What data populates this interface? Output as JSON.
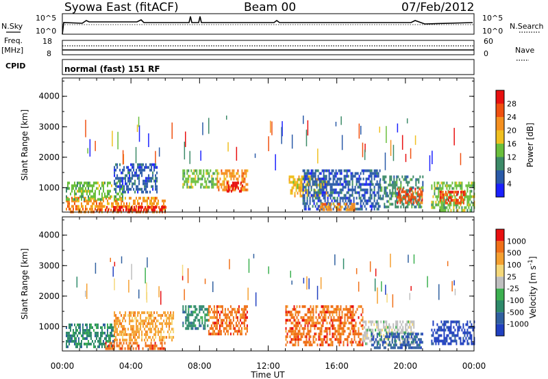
{
  "header": {
    "station": "Syowa East (fitACF)",
    "beam": "Beam 00",
    "date": "07/Feb/2012"
  },
  "top_panels": {
    "nsky_label": "N.Sky",
    "nsearch_label": "N.Search",
    "nsky_ticks": [
      "10^5",
      "10^0"
    ],
    "nsearch_ticks": [
      "10^5",
      "10^0"
    ],
    "freq_label": "Freq.",
    "freq_unit": "[MHz]",
    "freq_ticks": [
      "18",
      "8"
    ],
    "nave_label": "Nave",
    "nave_ticks": [
      "60",
      "0"
    ],
    "cpid_label": "CPID",
    "cpid_value": "normal (fast) 151 RF"
  },
  "chart_data": [
    {
      "type": "heatmap",
      "name": "power-panel",
      "ylabel": "Slant Range [km]",
      "ylim": [
        200,
        4600
      ],
      "yticks": [
        "1000",
        "2000",
        "3000",
        "4000"
      ],
      "colorbar_label": "Power [dB]",
      "colorbar_ticks": [
        "4",
        "8",
        "12",
        "16",
        "20",
        "24",
        "28"
      ],
      "colors": [
        "#1a20ff",
        "#2a5aa8",
        "#3c8a68",
        "#6abf3c",
        "#f0c020",
        "#f59020",
        "#f05010",
        "#e81010"
      ],
      "regions": [
        {
          "t0": 0.2,
          "t1": 6.0,
          "r0": 250,
          "r1": 700,
          "c": 5
        },
        {
          "t0": 2.0,
          "t1": 6.0,
          "r0": 250,
          "r1": 400,
          "c": 7
        },
        {
          "t0": 0.2,
          "t1": 3.5,
          "r0": 600,
          "r1": 1200,
          "c": 3
        },
        {
          "t0": 3.0,
          "t1": 5.5,
          "r0": 900,
          "r1": 1800,
          "c": 1
        },
        {
          "t0": 7.0,
          "t1": 9.0,
          "r0": 1000,
          "r1": 1600,
          "c": 3
        },
        {
          "t0": 9.0,
          "t1": 10.8,
          "r0": 900,
          "r1": 1600,
          "c": 5
        },
        {
          "t0": 9.5,
          "t1": 10.5,
          "r0": 900,
          "r1": 1200,
          "c": 7
        },
        {
          "t0": 13.2,
          "t1": 15.5,
          "r0": 700,
          "r1": 1400,
          "c": 4
        },
        {
          "t0": 14.0,
          "t1": 18.5,
          "r0": 300,
          "r1": 1600,
          "c": 1
        },
        {
          "t0": 15.0,
          "t1": 17.0,
          "r0": 300,
          "r1": 500,
          "c": 5
        },
        {
          "t0": 18.5,
          "t1": 21.0,
          "r0": 400,
          "r1": 1400,
          "c": 2
        },
        {
          "t0": 19.5,
          "t1": 21.0,
          "r0": 500,
          "r1": 1000,
          "c": 6
        },
        {
          "t0": 21.5,
          "t1": 24.0,
          "r0": 300,
          "r1": 1200,
          "c": 3
        },
        {
          "t0": 22.0,
          "t1": 23.5,
          "r0": 500,
          "r1": 900,
          "c": 6
        }
      ]
    },
    {
      "type": "heatmap",
      "name": "velocity-panel",
      "ylabel": "Slant Range [km]",
      "ylim": [
        200,
        4600
      ],
      "yticks": [
        "1000",
        "2000",
        "3000",
        "4000"
      ],
      "colorbar_label": "Velocity [m s",
      "colorbar_sup": "-1",
      "colorbar_ticks": [
        "1000",
        "500",
        "100",
        "25",
        "-25",
        "-100",
        "-500",
        "-1000"
      ],
      "colors": [
        "#2040c0",
        "#3060a0",
        "#2e8a6a",
        "#3cb050",
        "#bfbfbf",
        "#f5d87a",
        "#f5a030",
        "#f07018",
        "#e81010"
      ],
      "regions": [
        {
          "t0": 0.2,
          "t1": 3.0,
          "r0": 300,
          "r1": 1100,
          "c": 2
        },
        {
          "t0": 2.5,
          "t1": 6.0,
          "r0": 300,
          "r1": 500,
          "c": 7
        },
        {
          "t0": 3.0,
          "t1": 6.5,
          "r0": 600,
          "r1": 1500,
          "c": 6
        },
        {
          "t0": 7.0,
          "t1": 8.5,
          "r0": 900,
          "r1": 1700,
          "c": 2
        },
        {
          "t0": 8.5,
          "t1": 10.8,
          "r0": 800,
          "r1": 1700,
          "c": 7
        },
        {
          "t0": 13.0,
          "t1": 17.5,
          "r0": 400,
          "r1": 1700,
          "c": 7
        },
        {
          "t0": 17.5,
          "t1": 20.5,
          "r0": 400,
          "r1": 1200,
          "c": 4
        },
        {
          "t0": 18.0,
          "t1": 21.0,
          "r0": 300,
          "r1": 800,
          "c": 1
        },
        {
          "t0": 21.5,
          "t1": 24.0,
          "r0": 400,
          "r1": 1200,
          "c": 0
        }
      ]
    }
  ],
  "x_axis": {
    "label": "Time UT",
    "xlim": [
      0,
      24
    ],
    "ticks": [
      {
        "t": 0,
        "label": "00:00"
      },
      {
        "t": 4,
        "label": "04:00"
      },
      {
        "t": 8,
        "label": "08:00"
      },
      {
        "t": 12,
        "label": "12:00"
      },
      {
        "t": 16,
        "label": "16:00"
      },
      {
        "t": 20,
        "label": "20:00"
      },
      {
        "t": 24,
        "label": "00:00"
      }
    ]
  }
}
